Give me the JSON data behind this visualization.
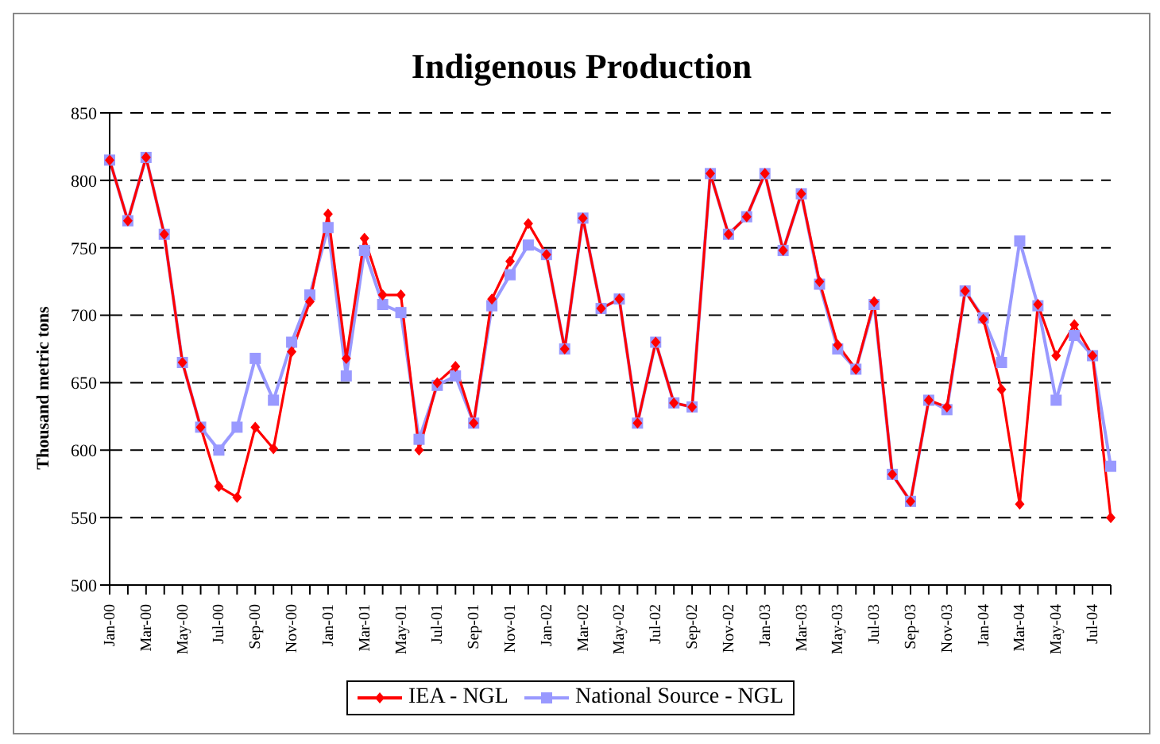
{
  "chart_data": {
    "type": "line",
    "title": "Indigenous Production",
    "ylabel": "Thousand metric tons",
    "categories": [
      "Jan-00",
      null,
      "Mar-00",
      null,
      "May-00",
      null,
      "Jul-00",
      null,
      "Sep-00",
      null,
      "Nov-00",
      null,
      "Jan-01",
      null,
      "Mar-01",
      null,
      "May-01",
      null,
      "Jul-01",
      null,
      "Sep-01",
      null,
      "Nov-01",
      null,
      "Jan-02",
      null,
      "Mar-02",
      null,
      "May-02",
      null,
      "Jul-02",
      null,
      "Sep-02",
      null,
      "Nov-02",
      null,
      "Jan-03",
      null,
      "Mar-03",
      null,
      "May-03",
      null,
      "Jul-03",
      null,
      "Sep-03",
      null,
      "Nov-03",
      null,
      "Jan-04",
      null,
      "Mar-04",
      null,
      "May-04",
      null,
      "Jul-04",
      null
    ],
    "series": [
      {
        "name": "IEA - NGL",
        "color": "#ff0000",
        "marker": "diamond",
        "values": [
          815,
          770,
          817,
          760,
          665,
          617,
          573,
          565,
          617,
          601,
          673,
          710,
          775,
          668,
          757,
          715,
          715,
          600,
          650,
          662,
          620,
          712,
          740,
          768,
          745,
          675,
          772,
          705,
          712,
          620,
          680,
          635,
          632,
          805,
          760,
          773,
          805,
          748,
          790,
          725,
          678,
          660,
          710,
          582,
          562,
          637,
          632,
          718,
          697,
          645,
          560,
          708,
          670,
          693,
          670,
          550
        ]
      },
      {
        "name": "National Source - NGL",
        "color": "#9999ff",
        "marker": "square",
        "values": [
          815,
          770,
          817,
          760,
          665,
          617,
          600,
          617,
          668,
          637,
          680,
          715,
          765,
          655,
          748,
          708,
          702,
          608,
          648,
          655,
          620,
          707,
          730,
          752,
          745,
          675,
          772,
          705,
          712,
          620,
          680,
          635,
          632,
          805,
          760,
          773,
          805,
          748,
          790,
          723,
          675,
          660,
          708,
          582,
          562,
          637,
          630,
          718,
          698,
          665,
          755,
          707,
          637,
          685,
          670,
          588
        ]
      }
    ],
    "ylim": [
      500,
      850
    ],
    "yticks": [
      500,
      550,
      600,
      650,
      700,
      750,
      800,
      850
    ],
    "grid": "y",
    "legend": "bottom",
    "line_style": "solid"
  }
}
